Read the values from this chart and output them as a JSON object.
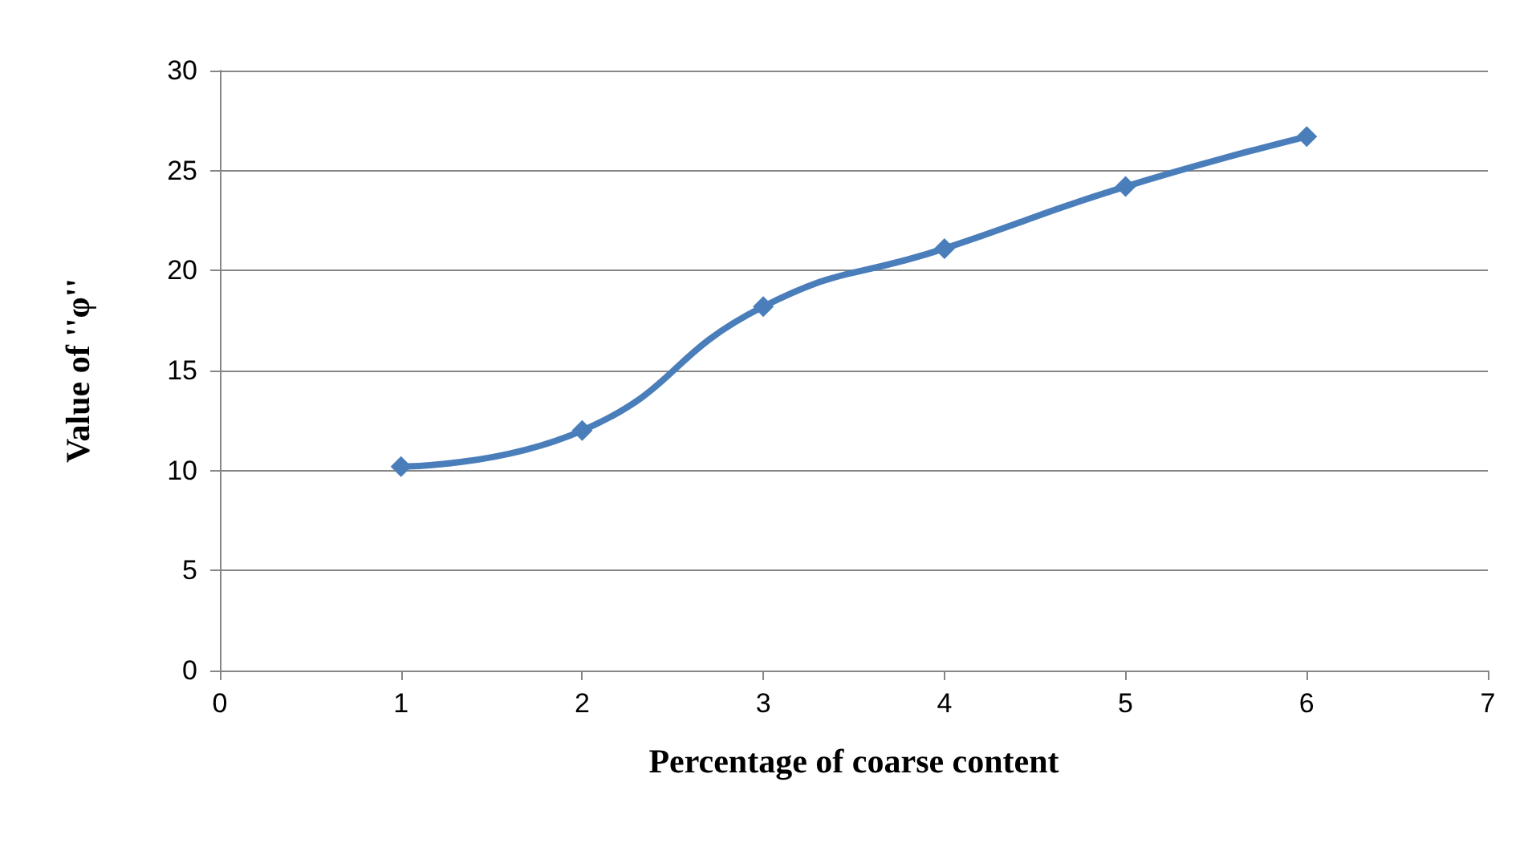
{
  "chart_data": {
    "type": "line",
    "xlabel": "Percentage of coarse content",
    "ylabel": "Value of ''φ''",
    "x": [
      1,
      2,
      3,
      4,
      5,
      6
    ],
    "series": [
      {
        "color": "#4a7ebb",
        "values": [
          10.2,
          12.0,
          18.2,
          21.1,
          24.2,
          26.7
        ]
      }
    ],
    "xlim": [
      0,
      7
    ],
    "xticks": [
      0,
      1,
      2,
      3,
      4,
      5,
      6,
      7
    ],
    "ylim": [
      0,
      30
    ],
    "yticks": [
      0,
      5,
      10,
      15,
      20,
      25,
      30
    ],
    "grid": "y",
    "marker": "diamond",
    "line_style": "solid"
  }
}
